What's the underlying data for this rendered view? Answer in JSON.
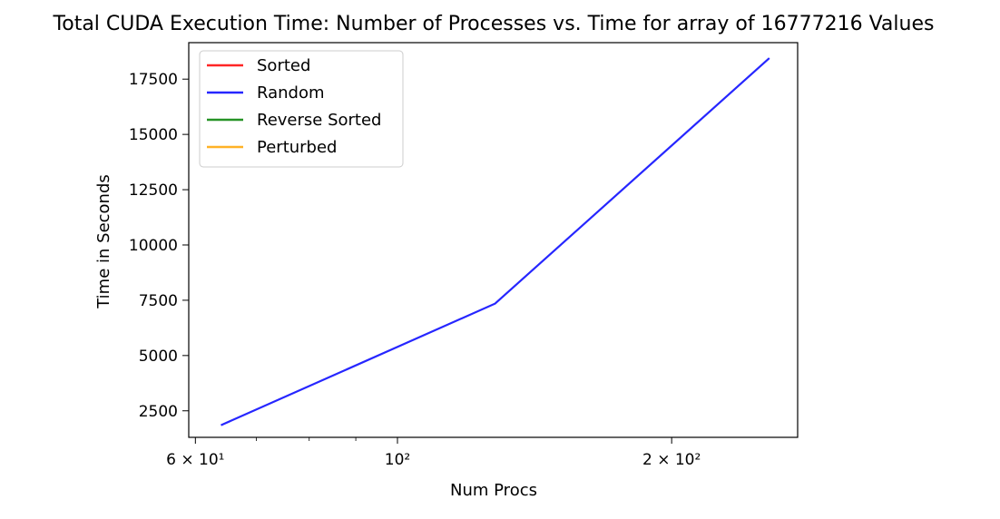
{
  "chart_data": {
    "type": "line",
    "title": "Total CUDA Execution Time: Number of Processes vs. Time for array of 16777216 Values",
    "xlabel": "Num Procs",
    "ylabel": "Time in Seconds",
    "x_scale": "log",
    "xlim": [
      59,
      275
    ],
    "ylim": [
      1300,
      19150
    ],
    "x_ticks": [
      {
        "value": 60,
        "label": "6 × 10¹"
      },
      {
        "value": 100,
        "label": "10²"
      },
      {
        "value": 200,
        "label": "2 × 10²"
      }
    ],
    "x_minor_ticks": [
      70,
      80,
      90
    ],
    "y_ticks": [
      {
        "value": 2500,
        "label": "2500"
      },
      {
        "value": 5000,
        "label": "5000"
      },
      {
        "value": 7500,
        "label": "7500"
      },
      {
        "value": 10000,
        "label": "10000"
      },
      {
        "value": 12500,
        "label": "12500"
      },
      {
        "value": 15000,
        "label": "15000"
      },
      {
        "value": 17500,
        "label": "17500"
      }
    ],
    "grid": false,
    "legend_position": "top-left",
    "series": [
      {
        "name": "Sorted",
        "color": "#ff0000",
        "x": [],
        "y": []
      },
      {
        "name": "Random",
        "color": "#0000ff",
        "x": [
          64,
          128,
          256
        ],
        "y": [
          1850,
          7350,
          18450
        ]
      },
      {
        "name": "Reverse Sorted",
        "color": "#008000",
        "x": [],
        "y": []
      },
      {
        "name": "Perturbed",
        "color": "#ffa500",
        "x": [],
        "y": []
      }
    ]
  }
}
